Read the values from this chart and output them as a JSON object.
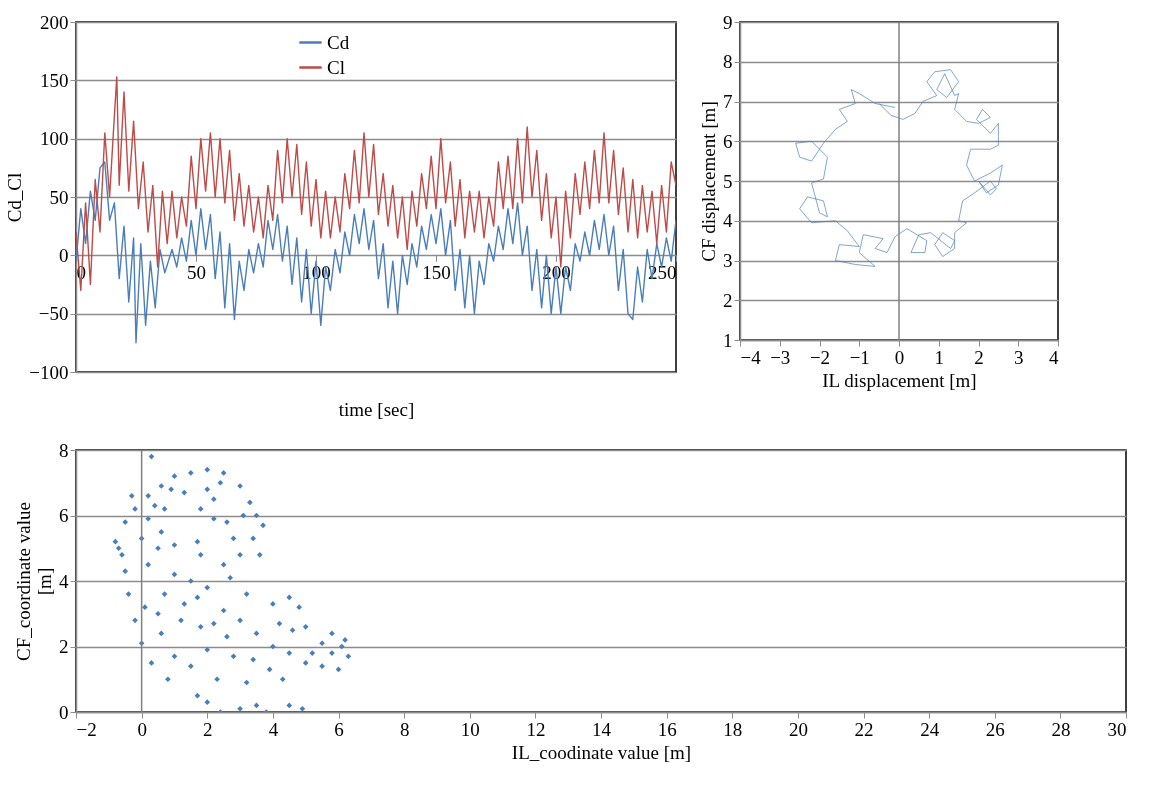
{
  "chart_data": [
    {
      "type": "line",
      "xlabel": "time [sec]",
      "ylabel": "Cd_Cl",
      "xlim": [
        0,
        250
      ],
      "ylim": [
        -100,
        200
      ],
      "xticks": [
        0,
        50,
        100,
        150,
        200,
        250
      ],
      "yticks": [
        -100,
        -50,
        0,
        50,
        100,
        150,
        200
      ],
      "grid": "y",
      "legend": "top",
      "series": [
        {
          "name": "Cd",
          "color": "#4a7ebb",
          "x": [
            0,
            2,
            4,
            6,
            8,
            10,
            12,
            14,
            16,
            18,
            20,
            22,
            24,
            25,
            27,
            29,
            31,
            33,
            35,
            37,
            40,
            42,
            44,
            46,
            48,
            50,
            52,
            54,
            56,
            58,
            60,
            62,
            64,
            66,
            68,
            70,
            72,
            74,
            76,
            78,
            80,
            82,
            84,
            86,
            88,
            90,
            92,
            94,
            96,
            98,
            100,
            102,
            104,
            106,
            108,
            110,
            112,
            114,
            116,
            118,
            120,
            122,
            124,
            126,
            128,
            130,
            132,
            134,
            136,
            138,
            140,
            142,
            144,
            146,
            148,
            150,
            152,
            154,
            156,
            158,
            160,
            162,
            164,
            166,
            168,
            170,
            172,
            174,
            176,
            178,
            180,
            182,
            184,
            186,
            188,
            190,
            192,
            194,
            196,
            198,
            200,
            202,
            204,
            206,
            208,
            210,
            212,
            214,
            216,
            218,
            220,
            222,
            224,
            226,
            228,
            230,
            232,
            234,
            236,
            238,
            240,
            242,
            244,
            246,
            248,
            250
          ],
          "values": [
            -5,
            40,
            10,
            55,
            30,
            75,
            80,
            30,
            45,
            -20,
            25,
            -40,
            15,
            -75,
            10,
            -60,
            -5,
            -45,
            5,
            -15,
            5,
            -10,
            15,
            -5,
            30,
            0,
            40,
            5,
            35,
            -20,
            20,
            -45,
            10,
            -55,
            -5,
            -30,
            5,
            -15,
            10,
            -10,
            30,
            5,
            35,
            -5,
            25,
            -25,
            15,
            -40,
            5,
            -50,
            -5,
            -60,
            -10,
            -30,
            5,
            -15,
            20,
            0,
            35,
            10,
            40,
            5,
            30,
            -20,
            10,
            -45,
            -5,
            -50,
            0,
            -25,
            10,
            -10,
            25,
            5,
            35,
            10,
            40,
            0,
            30,
            -30,
            5,
            -45,
            0,
            -50,
            -5,
            -25,
            10,
            -5,
            25,
            5,
            40,
            10,
            45,
            0,
            25,
            -30,
            5,
            -45,
            0,
            -50,
            -10,
            -50,
            -10,
            -30,
            10,
            -5,
            20,
            0,
            30,
            5,
            35,
            0,
            25,
            -30,
            5,
            -50,
            -55,
            -10,
            -40,
            5,
            -20,
            10,
            -10,
            15,
            -5,
            30
          ]
        },
        {
          "name": "Cl",
          "color": "#be4b48",
          "x": [
            0,
            2,
            4,
            6,
            8,
            10,
            12,
            14,
            16,
            17,
            18,
            20,
            22,
            24,
            26,
            28,
            30,
            32,
            34,
            36,
            38,
            40,
            42,
            44,
            46,
            48,
            50,
            52,
            54,
            56,
            58,
            60,
            62,
            64,
            66,
            68,
            70,
            72,
            74,
            76,
            78,
            80,
            82,
            84,
            86,
            88,
            90,
            92,
            94,
            96,
            98,
            100,
            102,
            104,
            106,
            108,
            110,
            112,
            114,
            116,
            118,
            120,
            122,
            124,
            126,
            128,
            130,
            132,
            134,
            136,
            138,
            140,
            142,
            144,
            146,
            148,
            150,
            152,
            154,
            156,
            158,
            160,
            162,
            164,
            166,
            168,
            170,
            172,
            174,
            176,
            178,
            180,
            182,
            184,
            186,
            188,
            190,
            192,
            194,
            196,
            198,
            200,
            202,
            204,
            206,
            208,
            210,
            212,
            214,
            216,
            218,
            220,
            222,
            224,
            226,
            228,
            230,
            232,
            234,
            236,
            238,
            240,
            242,
            244,
            246,
            248,
            250
          ],
          "values": [
            20,
            -30,
            45,
            -25,
            65,
            20,
            105,
            50,
            120,
            153,
            60,
            140,
            55,
            115,
            40,
            80,
            20,
            60,
            -10,
            55,
            10,
            55,
            15,
            50,
            25,
            85,
            40,
            100,
            55,
            105,
            50,
            100,
            45,
            90,
            30,
            70,
            25,
            60,
            20,
            50,
            15,
            60,
            30,
            90,
            45,
            100,
            50,
            95,
            35,
            80,
            25,
            65,
            15,
            55,
            15,
            50,
            20,
            70,
            40,
            90,
            45,
            105,
            50,
            95,
            35,
            70,
            25,
            60,
            15,
            50,
            5,
            55,
            25,
            70,
            40,
            85,
            40,
            100,
            45,
            80,
            25,
            65,
            15,
            55,
            20,
            55,
            15,
            50,
            25,
            80,
            40,
            85,
            40,
            100,
            45,
            110,
            50,
            90,
            30,
            70,
            15,
            50,
            -10,
            55,
            15,
            70,
            35,
            80,
            40,
            90,
            45,
            105,
            45,
            90,
            35,
            75,
            20,
            65,
            15,
            60,
            20,
            55,
            10,
            60,
            20,
            80,
            60
          ]
        }
      ]
    },
    {
      "type": "line",
      "xlabel": "IL displacement  [m]",
      "ylabel": "CF displacement  [m]",
      "xlim": [
        -4,
        4
      ],
      "ylim": [
        1,
        9
      ],
      "xticks": [
        -4,
        -3,
        -2,
        -1,
        0,
        1,
        2,
        3,
        4
      ],
      "yticks": [
        1,
        2,
        3,
        4,
        5,
        6,
        7,
        8,
        9
      ],
      "grid": "y",
      "ref_lines": [
        {
          "axis": "x",
          "value": 0,
          "color": "#808080"
        }
      ],
      "series": [
        {
          "color": "#4a7ebb",
          "x": [
            -0.5,
            -0.2,
            0.1,
            0.4,
            0.6,
            0.95,
            0.7,
            0.9,
            1.3,
            1.5,
            1.2,
            0.95,
            1.15,
            1.4,
            1.5,
            1.4,
            1.7,
            2.0,
            2.3,
            2.1,
            1.95,
            2.3,
            2.5,
            2.5,
            2.3,
            1.8,
            1.7,
            1.9,
            2.3,
            2.6,
            2.5,
            2.2,
            2.0,
            2.3,
            2.45,
            2.3,
            1.9,
            1.6,
            1.5,
            1.7,
            1.4,
            1.4,
            1.1,
            0.9,
            1.1,
            1.4,
            1.3,
            0.8,
            0.5,
            0.3,
            0.65,
            0.7,
            0.2,
            -0.1,
            -0.3,
            -0.6,
            -0.4,
            -0.9,
            -1.0,
            -0.6,
            -1.1,
            -1.6,
            -1.5,
            -1.0,
            -1.3,
            -1.6,
            -2.2,
            -2.5,
            -2.3,
            -1.9,
            -1.8,
            -2.0,
            -2.2,
            -1.9,
            -1.8,
            -2.2,
            -2.6,
            -2.5,
            -2.2,
            -1.9,
            -1.6,
            -1.3,
            -1.5,
            -1.1,
            -1.2,
            -1.0,
            -0.6,
            -0.1
          ],
          "values": [
            6.95,
            6.65,
            6.55,
            6.7,
            7.0,
            7.15,
            7.5,
            7.75,
            7.8,
            7.5,
            7.1,
            7.3,
            7.7,
            7.15,
            7.2,
            6.8,
            6.5,
            6.45,
            6.6,
            6.8,
            6.55,
            6.2,
            6.45,
            5.9,
            5.8,
            5.8,
            5.4,
            5.0,
            5.2,
            5.4,
            4.9,
            4.7,
            5.0,
            4.65,
            4.8,
            5.0,
            4.7,
            4.5,
            4.0,
            3.95,
            3.7,
            3.3,
            3.1,
            3.4,
            3.7,
            3.5,
            3.3,
            3.7,
            3.65,
            3.2,
            3.2,
            3.5,
            3.8,
            3.6,
            3.2,
            3.3,
            3.55,
            3.65,
            3.2,
            2.85,
            2.9,
            3.0,
            3.4,
            3.35,
            3.75,
            4.0,
            3.95,
            4.3,
            4.6,
            4.5,
            4.1,
            4.2,
            4.95,
            5.05,
            5.6,
            6.0,
            5.95,
            5.6,
            5.5,
            5.95,
            6.3,
            6.5,
            6.8,
            6.95,
            7.3,
            7.2,
            6.95,
            6.85
          ]
        }
      ]
    },
    {
      "type": "scatter",
      "xlabel": "IL_coodinate value [m]",
      "ylabel": "CF_coordinate value [m]",
      "xlim": [
        -2,
        30
      ],
      "ylim": [
        0,
        8
      ],
      "xticks": [
        -2,
        0,
        2,
        4,
        6,
        8,
        10,
        12,
        14,
        16,
        18,
        20,
        22,
        24,
        26,
        28,
        30
      ],
      "yticks": [
        0,
        2,
        4,
        6,
        8
      ],
      "grid": "y",
      "marker": "diamond",
      "ref_lines": [
        {
          "axis": "x",
          "value": 0,
          "color": "#808080"
        }
      ],
      "series": [
        {
          "color": "#4a7ebb",
          "x": [
            0.3,
            1.5,
            2.0,
            2.5,
            1.0,
            0.6,
            3.0,
            0.2,
            3.3,
            -0.2,
            0.4,
            2.2,
            3.5,
            3.7,
            -0.5,
            -0.7,
            0.0,
            0.5,
            3.4,
            3.0,
            2.5,
            1.7,
            2.2,
            2.0,
            1.3,
            0.7,
            0.6,
            1.8,
            -0.5,
            0.2,
            1.0,
            1.5,
            -0.4,
            0.1,
            0.7,
            2.0,
            2.7,
            3.2,
            4.0,
            4.5,
            4.8,
            5.0,
            5.5,
            5.8,
            6.2,
            6.3,
            6.0,
            5.5,
            5.2,
            4.6,
            4.0,
            3.5,
            3.0,
            2.5,
            1.8,
            1.2,
            0.6,
            0.0,
            -0.2,
            0.3,
            0.8,
            1.0,
            1.5,
            2.0,
            2.3,
            1.7,
            2.0,
            2.4,
            3.0,
            3.5,
            3.8,
            4.5,
            4.9,
            3.2,
            3.9,
            4.3,
            2.8,
            3.4,
            4.5,
            5.0,
            2.6,
            1.3,
            0.5,
            -0.8,
            -0.6,
            3.1,
            2.8,
            0.9,
            1.8,
            2.4,
            1.0,
            2.6,
            3.6,
            0.2,
            -0.3,
            1.7,
            2.2,
            4.2,
            5.8,
            6.1
          ],
          "values": [
            7.8,
            7.3,
            7.4,
            7.3,
            7.2,
            6.9,
            6.9,
            6.6,
            6.4,
            6.2,
            6.3,
            6.5,
            6.0,
            5.7,
            5.8,
            5.0,
            5.3,
            5.0,
            5.3,
            4.8,
            4.5,
            5.2,
            5.9,
            6.8,
            6.7,
            6.2,
            5.5,
            4.8,
            4.3,
            4.5,
            4.2,
            4.0,
            3.6,
            3.2,
            3.6,
            3.8,
            4.1,
            3.6,
            3.3,
            3.5,
            3.2,
            2.6,
            2.1,
            2.4,
            2.2,
            1.7,
            1.3,
            1.4,
            1.8,
            2.5,
            2.0,
            2.4,
            2.8,
            3.1,
            2.6,
            2.8,
            2.4,
            2.1,
            2.8,
            1.5,
            1.0,
            1.7,
            1.4,
            1.9,
            1.0,
            0.5,
            0.3,
            0.0,
            0.1,
            0.2,
            0.0,
            0.2,
            0.1,
            0.9,
            1.3,
            1.0,
            1.7,
            1.6,
            1.8,
            1.5,
            2.3,
            3.3,
            3.0,
            5.2,
            4.8,
            6.0,
            5.3,
            6.8,
            6.2,
            7.0,
            5.1,
            5.8,
            4.8,
            5.9,
            6.6,
            3.5,
            2.7,
            2.7,
            1.8,
            2.0
          ]
        }
      ]
    }
  ]
}
